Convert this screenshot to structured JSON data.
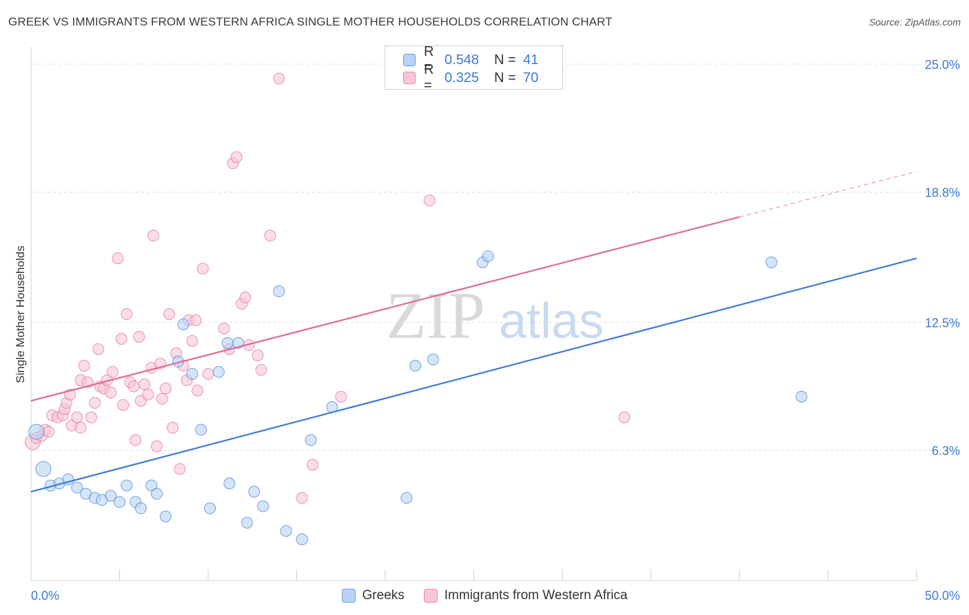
{
  "title": "GREEK VS IMMIGRANTS FROM WESTERN AFRICA SINGLE MOTHER HOUSEHOLDS CORRELATION CHART",
  "source": "Source: ZipAtlas.com",
  "watermark": {
    "zip": "ZIP",
    "atlas": "atlas"
  },
  "legend": {
    "series": [
      {
        "r_label": "R =",
        "r_value": "0.548",
        "n_label": "N =",
        "n_value": "41",
        "fill": "#b9d3f5",
        "stroke": "#6a9ee0"
      },
      {
        "r_label": "R =",
        "r_value": "0.325",
        "n_label": "N =",
        "n_value": "70",
        "fill": "#f8c7d7",
        "stroke": "#e98aaa"
      }
    ]
  },
  "chart_data": {
    "type": "scatter",
    "title": "GREEK VS IMMIGRANTS FROM WESTERN AFRICA SINGLE MOTHER HOUSEHOLDS CORRELATION CHART",
    "xlabel": "",
    "ylabel": "Single Mother Households",
    "xlim": [
      0,
      50
    ],
    "ylim": [
      0,
      25.5
    ],
    "x_tick_labels": [
      "0.0%",
      "50.0%"
    ],
    "y_ticks": [
      6.3,
      12.5,
      18.8,
      25.0
    ],
    "y_tick_labels": [
      "6.3%",
      "12.5%",
      "18.8%",
      "25.0%"
    ],
    "grid": true,
    "series": [
      {
        "name": "Greeks",
        "color": "#3c7ad6",
        "fill": "#b9d3f5",
        "trend": {
          "x0": 0,
          "y0": 4.3,
          "x1": 50,
          "y1": 15.6
        },
        "points": [
          [
            0.3,
            7.2
          ],
          [
            0.7,
            5.4
          ],
          [
            1.1,
            4.6
          ],
          [
            1.6,
            4.7
          ],
          [
            2.1,
            4.9
          ],
          [
            2.6,
            4.5
          ],
          [
            3.1,
            4.2
          ],
          [
            3.6,
            4.0
          ],
          [
            4.0,
            3.9
          ],
          [
            4.5,
            4.1
          ],
          [
            5.0,
            3.8
          ],
          [
            5.4,
            4.6
          ],
          [
            5.9,
            3.8
          ],
          [
            6.2,
            3.5
          ],
          [
            6.8,
            4.6
          ],
          [
            7.1,
            4.2
          ],
          [
            7.6,
            3.1
          ],
          [
            8.3,
            10.6
          ],
          [
            8.6,
            12.4
          ],
          [
            9.1,
            10.0
          ],
          [
            9.6,
            7.3
          ],
          [
            10.1,
            3.5
          ],
          [
            10.6,
            10.1
          ],
          [
            11.1,
            11.5
          ],
          [
            11.2,
            4.7
          ],
          [
            11.7,
            11.5
          ],
          [
            12.2,
            2.8
          ],
          [
            12.6,
            4.3
          ],
          [
            13.1,
            3.6
          ],
          [
            14.0,
            14.0
          ],
          [
            14.4,
            2.4
          ],
          [
            15.3,
            2.0
          ],
          [
            15.8,
            6.8
          ],
          [
            17.0,
            8.4
          ],
          [
            21.2,
            4.0
          ],
          [
            21.7,
            10.4
          ],
          [
            22.7,
            10.7
          ],
          [
            25.5,
            15.4
          ],
          [
            25.8,
            15.7
          ],
          [
            41.8,
            15.4
          ],
          [
            43.5,
            8.9
          ]
        ]
      },
      {
        "name": "Immigrants from Western Africa",
        "color": "#e06a93",
        "fill": "#f8c7d7",
        "trend": {
          "x0": 0,
          "y0": 8.7,
          "x1": 40,
          "y1": 17.6
        },
        "trend_dashed": {
          "x0": 40,
          "y0": 17.6,
          "x1": 50,
          "y1": 19.8
        },
        "points": [
          [
            0.1,
            6.7
          ],
          [
            0.3,
            6.9
          ],
          [
            0.6,
            7.0
          ],
          [
            0.8,
            7.3
          ],
          [
            1.0,
            7.2
          ],
          [
            1.2,
            8.0
          ],
          [
            1.5,
            7.9
          ],
          [
            1.8,
            8.0
          ],
          [
            1.9,
            8.3
          ],
          [
            2.0,
            8.6
          ],
          [
            2.2,
            9.0
          ],
          [
            2.3,
            7.5
          ],
          [
            2.6,
            7.9
          ],
          [
            2.8,
            9.7
          ],
          [
            2.8,
            7.4
          ],
          [
            3.0,
            10.4
          ],
          [
            3.2,
            9.6
          ],
          [
            3.4,
            7.9
          ],
          [
            3.6,
            8.6
          ],
          [
            3.8,
            11.2
          ],
          [
            3.9,
            9.4
          ],
          [
            4.1,
            9.3
          ],
          [
            4.3,
            9.7
          ],
          [
            4.5,
            9.1
          ],
          [
            4.6,
            10.1
          ],
          [
            4.9,
            15.6
          ],
          [
            5.1,
            11.7
          ],
          [
            5.2,
            8.5
          ],
          [
            5.4,
            12.9
          ],
          [
            5.6,
            9.6
          ],
          [
            5.8,
            9.4
          ],
          [
            5.9,
            6.8
          ],
          [
            6.1,
            11.8
          ],
          [
            6.2,
            8.7
          ],
          [
            6.4,
            9.5
          ],
          [
            6.6,
            9.0
          ],
          [
            6.8,
            10.3
          ],
          [
            6.9,
            16.7
          ],
          [
            7.1,
            6.5
          ],
          [
            7.3,
            10.5
          ],
          [
            7.4,
            8.8
          ],
          [
            7.6,
            9.3
          ],
          [
            7.8,
            12.9
          ],
          [
            8.0,
            7.4
          ],
          [
            8.2,
            11.0
          ],
          [
            8.4,
            5.4
          ],
          [
            8.6,
            10.4
          ],
          [
            8.8,
            9.7
          ],
          [
            8.9,
            12.6
          ],
          [
            9.1,
            11.6
          ],
          [
            9.3,
            12.6
          ],
          [
            9.4,
            9.2
          ],
          [
            9.7,
            15.1
          ],
          [
            10.0,
            10.0
          ],
          [
            10.9,
            12.2
          ],
          [
            11.2,
            11.2
          ],
          [
            11.4,
            20.2
          ],
          [
            11.6,
            20.5
          ],
          [
            11.9,
            13.4
          ],
          [
            12.1,
            13.7
          ],
          [
            12.3,
            11.4
          ],
          [
            12.8,
            10.9
          ],
          [
            13.0,
            10.2
          ],
          [
            13.5,
            16.7
          ],
          [
            14.0,
            24.3
          ],
          [
            15.3,
            4.0
          ],
          [
            15.9,
            5.6
          ],
          [
            17.5,
            8.9
          ],
          [
            22.5,
            18.4
          ],
          [
            33.5,
            7.9
          ]
        ]
      }
    ]
  },
  "bottom_legend": [
    {
      "label": "Greeks",
      "fill": "#b9d3f5",
      "stroke": "#6a9ee0"
    },
    {
      "label": "Immigrants from Western Africa",
      "fill": "#f8c7d7",
      "stroke": "#e98aaa"
    }
  ]
}
